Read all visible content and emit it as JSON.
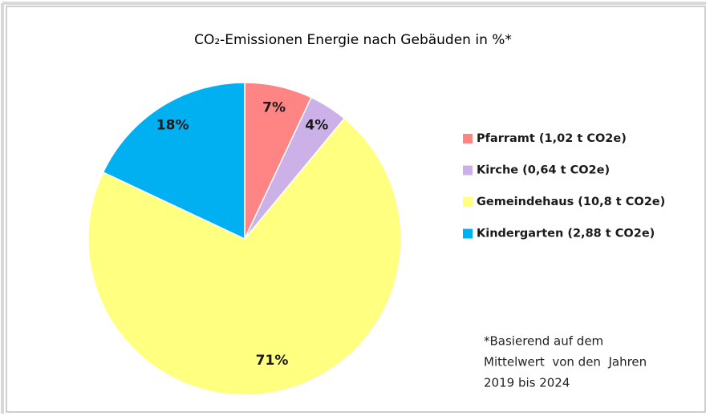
{
  "chart_data": {
    "type": "pie",
    "title": "CO₂-Emissionen Energie nach Gebäuden in %*",
    "categories": [
      "Pfarramt (1,02 t CO2e)",
      "Kirche (0,64 t CO2e)",
      "Gemeindehaus (10,8 t CO2e)",
      "Kindergarten (2,88 t CO2e)"
    ],
    "values": [
      7,
      4,
      71,
      18
    ],
    "value_labels": [
      "7%",
      "4%",
      "71%",
      "18%"
    ],
    "colors": [
      "#ff8585",
      "#ccb0e8",
      "#ffff80",
      "#00b0f0"
    ],
    "legend": "right",
    "annotation": [
      "*Basierend auf dem",
      "Mittelwert  von den  Jahren",
      "2019 bis 2024"
    ]
  }
}
